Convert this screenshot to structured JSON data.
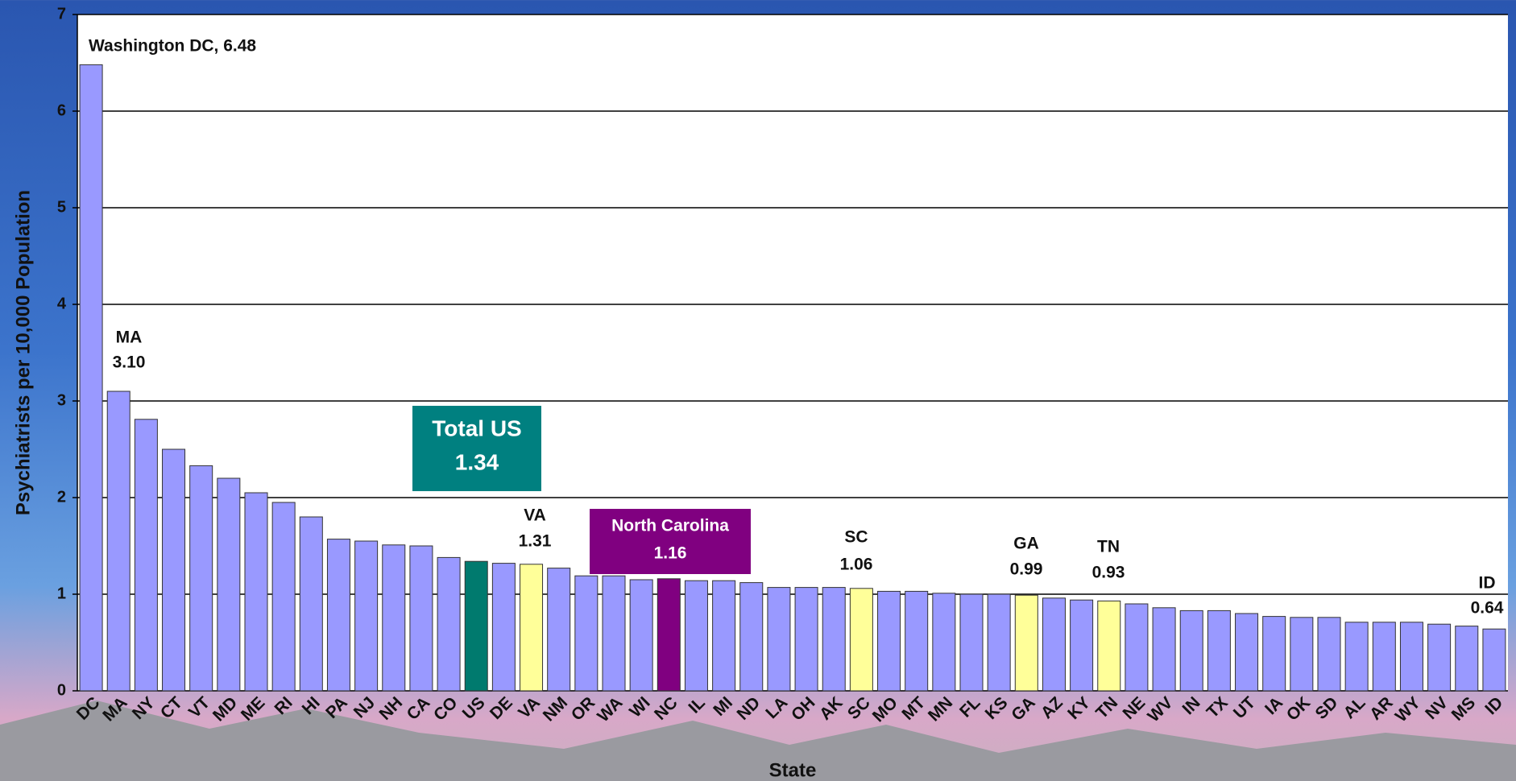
{
  "chart_data": {
    "type": "bar",
    "ylabel": "Psychiatrists per 10,000 Population",
    "xlabel": "State",
    "categories": [
      "DC",
      "MA",
      "NY",
      "CT",
      "VT",
      "MD",
      "ME",
      "RI",
      "HI",
      "PA",
      "NJ",
      "NH",
      "CA",
      "CO",
      "US",
      "DE",
      "VA",
      "NM",
      "OR",
      "WA",
      "WI",
      "NC",
      "IL",
      "MI",
      "ND",
      "LA",
      "OH",
      "AK",
      "SC",
      "MO",
      "MT",
      "MN",
      "FL",
      "KS",
      "GA",
      "AZ",
      "KY",
      "TN",
      "NE",
      "WV",
      "IN",
      "TX",
      "UT",
      "IA",
      "OK",
      "SD",
      "AL",
      "AR",
      "WY",
      "NV",
      "MS",
      "ID"
    ],
    "values": [
      6.48,
      3.1,
      2.81,
      2.5,
      2.33,
      2.2,
      2.05,
      1.95,
      1.8,
      1.57,
      1.55,
      1.51,
      1.5,
      1.38,
      1.34,
      1.32,
      1.31,
      1.27,
      1.19,
      1.19,
      1.15,
      1.16,
      1.14,
      1.14,
      1.12,
      1.07,
      1.07,
      1.07,
      1.06,
      1.03,
      1.03,
      1.01,
      1.0,
      1.0,
      0.99,
      0.96,
      0.94,
      0.93,
      0.9,
      0.86,
      0.83,
      0.83,
      0.8,
      0.77,
      0.76,
      0.76,
      0.71,
      0.71,
      0.71,
      0.69,
      0.67,
      0.64
    ],
    "colors": [
      "#9999ff",
      "#9999ff",
      "#9999ff",
      "#9999ff",
      "#9999ff",
      "#9999ff",
      "#9999ff",
      "#9999ff",
      "#9999ff",
      "#9999ff",
      "#9999ff",
      "#9999ff",
      "#9999ff",
      "#9999ff",
      "#007a6e",
      "#9999ff",
      "#ffff99",
      "#9999ff",
      "#9999ff",
      "#9999ff",
      "#9999ff",
      "#800080",
      "#9999ff",
      "#9999ff",
      "#9999ff",
      "#9999ff",
      "#9999ff",
      "#9999ff",
      "#ffff99",
      "#9999ff",
      "#9999ff",
      "#9999ff",
      "#9999ff",
      "#9999ff",
      "#ffff99",
      "#9999ff",
      "#9999ff",
      "#ffff99",
      "#9999ff",
      "#9999ff",
      "#9999ff",
      "#9999ff",
      "#9999ff",
      "#9999ff",
      "#9999ff",
      "#9999ff",
      "#9999ff",
      "#9999ff",
      "#9999ff",
      "#9999ff",
      "#9999ff",
      "#9999ff"
    ],
    "ylim": [
      0,
      7
    ],
    "yticks": [
      0,
      1,
      2,
      3,
      4,
      5,
      6,
      7
    ],
    "grid": true,
    "annotations": [
      {
        "lines": [
          "Washington DC, 6.48"
        ]
      },
      {
        "lines": [
          "MA",
          "3.10"
        ]
      },
      {
        "lines": [
          "Total US",
          "1.34"
        ]
      },
      {
        "lines": [
          "VA",
          "1.31"
        ]
      },
      {
        "lines": [
          "North Carolina",
          "1.16"
        ]
      },
      {
        "lines": [
          "SC",
          "1.06"
        ]
      },
      {
        "lines": [
          "GA",
          "0.99"
        ]
      },
      {
        "lines": [
          "TN",
          "0.93"
        ]
      },
      {
        "lines": [
          "ID",
          "0.64"
        ]
      }
    ]
  }
}
